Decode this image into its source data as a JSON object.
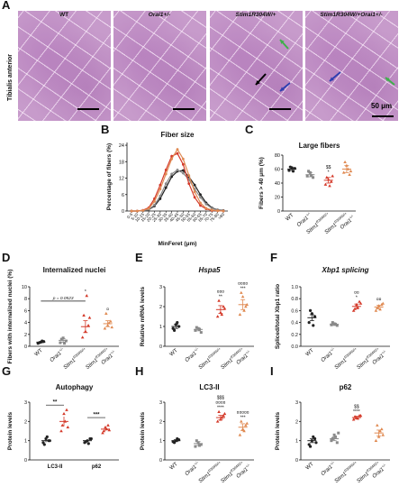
{
  "panel_letters": {
    "A": "A",
    "B": "B",
    "C": "C",
    "D": "D",
    "E": "E",
    "F": "F",
    "G": "G",
    "H": "H",
    "I": "I"
  },
  "histology": {
    "row_label": "Tibialis anterior",
    "columns": [
      "WT",
      "Orai1+/-",
      "Stim1R304W/+",
      "Stim1R304W/+Orai1+/-"
    ],
    "scale_label": "50 μm"
  },
  "colors": {
    "wt": "#222222",
    "orai1": "#8a8a8a",
    "stim1": "#d43a2a",
    "double": "#e08a52",
    "sig_marks": "#222222",
    "arrow_black": "#000000",
    "arrow_green": "#3fb04b",
    "arrow_blue": "#2f3fb0"
  },
  "chart_data": [
    {
      "id": "B",
      "type": "line",
      "title": "Fiber size",
      "xlabel": "MinFeret (μm)",
      "ylabel": "Percentage of fibers (%)",
      "ylim": [
        0,
        25
      ],
      "yticks": [
        0,
        6,
        12,
        18,
        24
      ],
      "categories": [
        "0-5",
        "5-10",
        "10-15",
        "15-20",
        "20-25",
        "25-30",
        "30-35",
        "35-40",
        "40-45",
        "45-50",
        "50-55",
        "55-60",
        "60-65",
        "65-70",
        "70-75",
        "75-80",
        ">80"
      ],
      "series": [
        {
          "key": "wt",
          "values": [
            0,
            0,
            0.1,
            0.5,
            1.8,
            4.5,
            8.5,
            12.5,
            14.5,
            14.8,
            12.5,
            9.5,
            6,
            3,
            1.2,
            0.4,
            0.2
          ]
        },
        {
          "key": "orai1",
          "values": [
            0,
            0,
            0.1,
            0.6,
            2.2,
            5.5,
            10,
            13.5,
            15,
            13.8,
            11.5,
            8,
            5,
            2.5,
            1,
            0.3,
            0.1
          ]
        },
        {
          "key": "stim1",
          "values": [
            0,
            0,
            0.3,
            1.2,
            4.5,
            9.5,
            15,
            20,
            21,
            17,
            10,
            5,
            2,
            0.8,
            0.2,
            0.1,
            0
          ]
        },
        {
          "key": "double",
          "values": [
            0,
            0,
            0.2,
            0.9,
            3.5,
            8,
            13.5,
            19,
            22.5,
            19,
            13,
            7,
            3,
            1,
            0.4,
            0.1,
            0
          ]
        }
      ]
    },
    {
      "id": "C",
      "type": "scatter",
      "title": "Large fibers",
      "ylabel": "Fibers > 40 μm (%)",
      "ylim": [
        0,
        80
      ],
      "yticks": [
        0,
        20,
        40,
        60,
        80
      ],
      "categories": [
        "WT",
        "Orai1+/-",
        "Stim1R304W/+",
        "Stim1R304W/+ Orai1+/-"
      ],
      "means": [
        60,
        52,
        44,
        60
      ],
      "sems": [
        2,
        3,
        4,
        5
      ],
      "points": [
        [
          58,
          62,
          61,
          63,
          57
        ],
        [
          50,
          55,
          48,
          57,
          51
        ],
        [
          38,
          45,
          42,
          48,
          36,
          50
        ],
        [
          55,
          65,
          52,
          70,
          60,
          57
        ]
      ],
      "annotations": [
        "",
        "",
        "$$ *",
        ""
      ]
    },
    {
      "id": "D",
      "type": "scatter",
      "title": "Internalized nuclei",
      "ylabel": "Fibers with internalized nuclei (%)",
      "ylim": [
        0,
        10
      ],
      "yticks": [
        0,
        2,
        4,
        6,
        8,
        10
      ],
      "categories": [
        "WT",
        "Orai1+/-",
        "Stim1R304W/+",
        "Stim1R304W/+ Orai1+/-"
      ],
      "means": [
        0.7,
        1.0,
        3.3,
        3.8
      ],
      "sems": [
        0.1,
        0.3,
        1.0,
        0.5
      ],
      "points": [
        [
          0.5,
          0.7,
          0.8,
          0.6,
          0.9
        ],
        [
          0.6,
          1.4,
          0.9,
          1.2,
          0.5
        ],
        [
          1.5,
          2.5,
          3.5,
          5.2,
          8.5,
          4.8
        ],
        [
          3.0,
          3.5,
          4.2,
          5.5,
          3.9,
          3.2
        ]
      ],
      "annotations": [
        "",
        "",
        "*",
        "¤"
      ],
      "comparison_label": "p = 0.0523"
    },
    {
      "id": "E",
      "type": "scatter",
      "title": "Hspa5",
      "ylabel": "Relative mRNA levels",
      "ylim": [
        0,
        3
      ],
      "yticks": [
        0,
        1,
        2,
        3
      ],
      "categories": [
        "WT",
        "Orai1+/-",
        "Stim1R304W/+",
        "Stim1R304W/+ Orai1+/-"
      ],
      "means": [
        1.0,
        0.85,
        1.85,
        2.1
      ],
      "sems": [
        0.1,
        0.07,
        0.2,
        0.25
      ],
      "points": [
        [
          0.9,
          1.1,
          1.0,
          0.8,
          1.2
        ],
        [
          0.8,
          0.9,
          0.7,
          0.95,
          0.85
        ],
        [
          1.5,
          1.7,
          2.0,
          2.3,
          1.6,
          1.9
        ],
        [
          1.6,
          2.5,
          2.0,
          2.7,
          1.8,
          2.1
        ]
      ],
      "annotations": [
        "",
        "",
        "¤¤¤ **",
        "¤¤¤¤ ***"
      ]
    },
    {
      "id": "F",
      "type": "scatter",
      "title": "Xbp1 splicing",
      "ylabel": "Spliced/total Xbp1 ratio",
      "ylim": [
        0.0,
        1.0
      ],
      "yticks": [
        0.0,
        0.2,
        0.4,
        0.6,
        0.8,
        1.0
      ],
      "categories": [
        "WT",
        "Orai1+/-",
        "Stim1R304W/+",
        "Stim1R304W/+ Orai1+/-"
      ],
      "means": [
        0.48,
        0.37,
        0.67,
        0.66
      ],
      "sems": [
        0.05,
        0.02,
        0.04,
        0.03
      ],
      "points": [
        [
          0.4,
          0.55,
          0.5,
          0.6,
          0.35
        ],
        [
          0.36,
          0.38,
          0.35,
          0.4,
          0.37
        ],
        [
          0.6,
          0.7,
          0.75,
          0.63,
          0.65,
          0.72
        ],
        [
          0.6,
          0.68,
          0.7,
          0.64,
          0.62,
          0.72
        ]
      ],
      "annotations": [
        "",
        "",
        "¤¤ *",
        "¤¤"
      ]
    },
    {
      "id": "G",
      "type": "scatter",
      "title": "Autophagy",
      "ylabel": "Protein levels",
      "ylim": [
        0,
        3
      ],
      "yticks": [
        0,
        1,
        2,
        3
      ],
      "categories": [
        "LC3-II",
        "p62"
      ],
      "groups": [
        {
          "x": "LC3-II",
          "key": "wt",
          "mean": 1.0,
          "sem": 0.08,
          "points": [
            0.9,
            1.1,
            1.0,
            0.8,
            1.2,
            1.0
          ]
        },
        {
          "x": "LC3-II",
          "key": "stim1",
          "mean": 2.0,
          "sem": 0.25,
          "points": [
            1.5,
            2.4,
            2.6,
            1.8,
            2.0,
            1.7
          ]
        },
        {
          "x": "p62",
          "key": "wt",
          "mean": 1.0,
          "sem": 0.06,
          "points": [
            0.9,
            1.0,
            1.1,
            0.95,
            0.85,
            1.1
          ]
        },
        {
          "x": "p62",
          "key": "stim1",
          "mean": 1.6,
          "sem": 0.1,
          "points": [
            1.4,
            1.7,
            1.8,
            1.5,
            1.6,
            1.55
          ]
        }
      ],
      "comparisons": [
        "**",
        "***"
      ]
    },
    {
      "id": "H",
      "type": "scatter",
      "title": "LC3-II",
      "ylabel": "Protein levels",
      "ylim": [
        0,
        3
      ],
      "yticks": [
        0,
        1,
        2,
        3
      ],
      "categories": [
        "WT",
        "Orai1+/-",
        "Stim1R304W/+",
        "Stim1R304W/+ Orai1+/-"
      ],
      "means": [
        1.0,
        0.85,
        2.2,
        1.7
      ],
      "sems": [
        0.05,
        0.1,
        0.12,
        0.18
      ],
      "points": [
        [
          0.95,
          1.0,
          1.05,
          0.9,
          1.1
        ],
        [
          0.7,
          0.9,
          0.8,
          1.0,
          0.75
        ],
        [
          2.0,
          2.1,
          2.3,
          2.5,
          2.2,
          2.4
        ],
        [
          1.3,
          1.6,
          1.8,
          2.0,
          1.5,
          1.9
        ]
      ],
      "annotations": [
        "",
        "",
        "$$$ ¤¤¤¤ ****",
        "¤¤¤¤¤ ***"
      ]
    },
    {
      "id": "I",
      "type": "scatter",
      "title": "p62",
      "ylabel": "Protein levels",
      "ylim": [
        0,
        3
      ],
      "yticks": [
        0,
        1,
        2,
        3
      ],
      "categories": [
        "WT",
        "Orai1+/-",
        "Stim1R304W/+",
        "Stim1R304W/+ Orai1+/-"
      ],
      "means": [
        1.0,
        1.1,
        2.2,
        1.4
      ],
      "sems": [
        0.1,
        0.1,
        0.07,
        0.15
      ],
      "points": [
        [
          0.8,
          1.0,
          1.1,
          0.7,
          1.2,
          0.9
        ],
        [
          1.0,
          1.3,
          0.9,
          1.1,
          1.2,
          1.4
        ],
        [
          2.1,
          2.2,
          2.3,
          2.25,
          2.15,
          2.3
        ],
        [
          1.0,
          1.2,
          1.6,
          1.8,
          1.5,
          1.3
        ]
      ],
      "annotations": [
        "",
        "",
        "$$ ****",
        ""
      ]
    }
  ]
}
